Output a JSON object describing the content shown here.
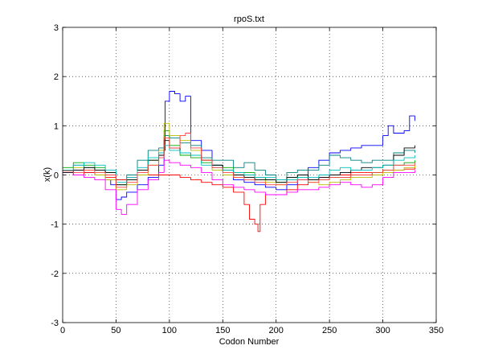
{
  "chart_data": {
    "type": "line",
    "title": "rpoS.txt",
    "xlabel": "Codon Number",
    "ylabel": "x(k)",
    "xlim": [
      0,
      350
    ],
    "ylim": [
      -3,
      3
    ],
    "xticks": [
      0,
      50,
      100,
      150,
      200,
      250,
      300,
      350
    ],
    "yticks": [
      -3,
      -2,
      -1,
      0,
      1,
      2,
      3
    ],
    "grid": true,
    "series": [
      {
        "color": "#0000ff",
        "x": [
          0,
          10,
          20,
          30,
          40,
          45,
          50,
          55,
          60,
          70,
          80,
          90,
          95,
          96,
          100,
          105,
          110,
          115,
          120,
          130,
          140,
          150,
          160,
          170,
          180,
          190,
          200,
          210,
          220,
          230,
          240,
          250,
          260,
          270,
          280,
          290,
          300,
          305,
          310,
          320,
          325,
          330
        ],
        "y": [
          0.05,
          0.1,
          0.05,
          0.0,
          -0.1,
          -0.2,
          -0.5,
          -0.45,
          -0.35,
          -0.2,
          -0.05,
          0.2,
          0.5,
          1.5,
          1.7,
          1.65,
          1.5,
          1.6,
          0.7,
          0.5,
          0.2,
          0.1,
          -0.1,
          -0.15,
          -0.2,
          -0.25,
          -0.3,
          -0.2,
          -0.1,
          0.15,
          0.3,
          0.45,
          0.5,
          0.55,
          0.6,
          0.6,
          0.8,
          1.0,
          0.85,
          0.9,
          1.2,
          1.1
        ]
      },
      {
        "color": "#008080",
        "x": [
          0,
          10,
          20,
          30,
          40,
          50,
          60,
          70,
          80,
          90,
          95,
          100,
          110,
          120,
          130,
          140,
          150,
          160,
          170,
          180,
          190,
          200,
          210,
          220,
          230,
          240,
          250,
          260,
          270,
          280,
          290,
          300,
          310,
          320,
          330
        ],
        "y": [
          0.1,
          0.2,
          0.15,
          0.1,
          0.05,
          -0.1,
          0.0,
          0.3,
          0.5,
          0.55,
          0.8,
          0.75,
          0.65,
          0.6,
          0.35,
          0.3,
          0.3,
          0.15,
          0.25,
          0.1,
          0.0,
          -0.1,
          0.05,
          0.1,
          0.1,
          0.2,
          0.4,
          0.35,
          0.3,
          0.25,
          0.3,
          0.3,
          0.45,
          0.5,
          0.45
        ]
      },
      {
        "color": "#ff0000",
        "x": [
          0,
          10,
          20,
          30,
          40,
          50,
          60,
          70,
          80,
          90,
          95,
          100,
          110,
          120,
          130,
          140,
          150,
          160,
          170,
          175,
          180,
          183,
          185,
          190,
          200,
          210,
          220,
          230,
          240,
          250,
          260,
          270,
          280,
          290,
          300,
          310,
          320,
          330
        ],
        "y": [
          0.05,
          0.0,
          0.05,
          0.0,
          -0.05,
          -0.1,
          -0.05,
          0.0,
          0.0,
          0.0,
          0.0,
          0.0,
          -0.05,
          -0.1,
          -0.15,
          -0.2,
          -0.25,
          -0.35,
          -0.6,
          -0.9,
          -1.0,
          -1.15,
          -0.6,
          -0.4,
          -0.4,
          -0.3,
          -0.2,
          -0.1,
          -0.05,
          0.0,
          0.0,
          0.05,
          0.05,
          0.05,
          0.1,
          0.1,
          0.12,
          0.15
        ]
      },
      {
        "color": "#00aa00",
        "x": [
          0,
          10,
          20,
          30,
          40,
          50,
          60,
          70,
          80,
          90,
          95,
          100,
          110,
          120,
          130,
          140,
          150,
          160,
          170,
          180,
          190,
          200,
          210,
          220,
          230,
          240,
          250,
          260,
          270,
          280,
          290,
          300,
          310,
          320,
          330
        ],
        "y": [
          0.15,
          0.25,
          0.2,
          0.15,
          0.05,
          -0.2,
          -0.1,
          0.1,
          0.3,
          0.45,
          0.9,
          0.6,
          0.4,
          0.35,
          0.25,
          0.2,
          0.15,
          0.05,
          0.05,
          -0.05,
          -0.1,
          -0.15,
          -0.05,
          0.0,
          -0.1,
          -0.1,
          -0.05,
          -0.05,
          0.0,
          0.0,
          0.05,
          0.1,
          0.2,
          0.25,
          0.3
        ]
      },
      {
        "color": "#bbbb00",
        "x": [
          0,
          10,
          20,
          30,
          40,
          50,
          60,
          70,
          80,
          90,
          95,
          100,
          110,
          120,
          130,
          140,
          150,
          160,
          170,
          180,
          190,
          200,
          210,
          220,
          230,
          240,
          250,
          260,
          270,
          280,
          290,
          300,
          310,
          320,
          330
        ],
        "y": [
          0.1,
          0.15,
          0.1,
          0.0,
          -0.1,
          -0.3,
          -0.2,
          0.0,
          0.2,
          0.5,
          1.05,
          0.8,
          0.7,
          0.5,
          0.3,
          0.1,
          0.0,
          -0.05,
          -0.05,
          -0.1,
          -0.15,
          -0.2,
          -0.1,
          -0.05,
          -0.15,
          -0.2,
          -0.15,
          -0.1,
          -0.05,
          -0.05,
          0.0,
          0.05,
          0.1,
          0.15,
          0.2
        ]
      },
      {
        "color": "#ff00ff",
        "x": [
          0,
          10,
          20,
          30,
          40,
          50,
          55,
          60,
          70,
          80,
          90,
          95,
          100,
          110,
          120,
          130,
          140,
          150,
          160,
          170,
          180,
          190,
          200,
          210,
          220,
          230,
          240,
          250,
          260,
          270,
          280,
          290,
          300,
          310,
          320,
          330
        ],
        "y": [
          0.05,
          0.0,
          -0.05,
          -0.1,
          -0.3,
          -0.7,
          -0.8,
          -0.6,
          -0.3,
          -0.1,
          0.05,
          0.3,
          0.25,
          0.2,
          0.15,
          0.05,
          -0.1,
          -0.2,
          -0.25,
          -0.3,
          -0.35,
          -0.4,
          -0.4,
          -0.35,
          -0.3,
          -0.3,
          -0.25,
          -0.2,
          -0.15,
          -0.2,
          -0.25,
          -0.2,
          -0.05,
          0.05,
          0.05,
          0.1
        ]
      },
      {
        "color": "#000000",
        "x": [
          0,
          10,
          20,
          30,
          40,
          50,
          60,
          70,
          80,
          90,
          95,
          100,
          110,
          120,
          130,
          140,
          150,
          160,
          170,
          180,
          190,
          200,
          210,
          220,
          230,
          240,
          250,
          260,
          270,
          280,
          290,
          300,
          310,
          320,
          330
        ],
        "y": [
          0.05,
          0.1,
          0.15,
          0.1,
          0.05,
          -0.2,
          -0.1,
          0.1,
          0.3,
          0.4,
          0.7,
          0.55,
          0.45,
          0.4,
          0.3,
          0.2,
          0.1,
          0.0,
          -0.05,
          -0.1,
          -0.1,
          -0.15,
          -0.05,
          0.0,
          -0.1,
          -0.05,
          0.0,
          0.05,
          0.1,
          0.15,
          0.15,
          0.2,
          0.4,
          0.55,
          0.6
        ]
      },
      {
        "color": "#00bfbf",
        "x": [
          0,
          10,
          20,
          30,
          40,
          50,
          60,
          70,
          80,
          90,
          95,
          100,
          110,
          120,
          130,
          140,
          150,
          160,
          170,
          180,
          190,
          200,
          210,
          220,
          230,
          240,
          250,
          260,
          270,
          280,
          290,
          300,
          310,
          320,
          330
        ],
        "y": [
          0.1,
          0.2,
          0.25,
          0.2,
          0.1,
          -0.15,
          -0.05,
          0.15,
          0.35,
          0.45,
          0.6,
          0.5,
          0.45,
          0.4,
          0.2,
          0.15,
          0.1,
          0.05,
          0.0,
          -0.05,
          -0.05,
          -0.1,
          -0.1,
          -0.05,
          -0.05,
          0.0,
          0.1,
          0.15,
          0.1,
          0.1,
          0.15,
          0.2,
          0.3,
          0.35,
          0.4
        ]
      },
      {
        "color": "#ff4040",
        "x": [
          0,
          10,
          20,
          30,
          40,
          50,
          60,
          70,
          80,
          90,
          95,
          100,
          110,
          115,
          120,
          130,
          140,
          150,
          160,
          170,
          180,
          190,
          200,
          210,
          220,
          230,
          240,
          250,
          260,
          270,
          280,
          290,
          300,
          310,
          320,
          330
        ],
        "y": [
          0.08,
          0.05,
          0.1,
          0.05,
          0.0,
          -0.25,
          -0.15,
          0.05,
          0.2,
          0.35,
          0.75,
          0.55,
          0.8,
          0.85,
          0.55,
          0.3,
          0.15,
          0.05,
          -0.05,
          -0.1,
          -0.15,
          -0.2,
          -0.2,
          -0.15,
          -0.1,
          -0.15,
          -0.1,
          -0.05,
          -0.05,
          0.0,
          0.0,
          0.05,
          0.1,
          0.2,
          0.2,
          0.25
        ]
      }
    ]
  }
}
